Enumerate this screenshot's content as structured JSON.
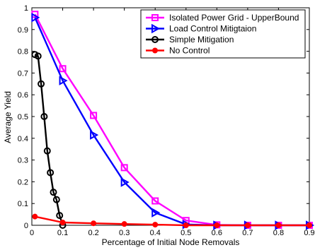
{
  "chart_data": {
    "type": "line",
    "xlabel": "Percentage of Initial Node Removals",
    "ylabel": "Average Yield",
    "xlim": [
      0,
      0.9
    ],
    "ylim": [
      0,
      1
    ],
    "x_ticks": [
      "0",
      "0.1",
      "0.2",
      "0.3",
      "0.4",
      "0.5",
      "0.6",
      "0.7",
      "0.8",
      "0.9"
    ],
    "y_ticks": [
      "0",
      "0.1",
      "0.2",
      "0.3",
      "0.4",
      "0.5",
      "0.6",
      "0.7",
      "0.8",
      "0.9",
      "1"
    ],
    "grid": false,
    "legend_position": "top-right",
    "series": [
      {
        "name": "Isolated Power Grid - UpperBound",
        "color": "#ff00ff",
        "marker": "square",
        "x": [
          0.01,
          0.1,
          0.2,
          0.3,
          0.4,
          0.5,
          0.6,
          0.7,
          0.8,
          0.9
        ],
        "y": [
          0.97,
          0.72,
          0.505,
          0.265,
          0.112,
          0.022,
          0.002,
          0.0,
          0.0,
          0.0
        ]
      },
      {
        "name": "Load Control Mitigtaion",
        "color": "#0000ff",
        "marker": "triangle-right",
        "x": [
          0.01,
          0.1,
          0.2,
          0.3,
          0.4,
          0.5,
          0.6,
          0.7,
          0.8,
          0.9
        ],
        "y": [
          0.955,
          0.665,
          0.415,
          0.198,
          0.058,
          0.004,
          0.0,
          0.0,
          0.0,
          0.0
        ]
      },
      {
        "name": "Simple Mitigation",
        "color": "#000000",
        "marker": "circle",
        "x": [
          0.01,
          0.02,
          0.03,
          0.04,
          0.05,
          0.06,
          0.07,
          0.08,
          0.09,
          0.1
        ],
        "y": [
          0.785,
          0.778,
          0.65,
          0.5,
          0.342,
          0.242,
          0.152,
          0.118,
          0.045,
          0.0
        ]
      },
      {
        "name": "No Control",
        "color": "#ff0000",
        "marker": "dot",
        "x": [
          0.01,
          0.1,
          0.2,
          0.3,
          0.4,
          0.5,
          0.6,
          0.7,
          0.8,
          0.9
        ],
        "y": [
          0.04,
          0.013,
          0.009,
          0.006,
          0.003,
          0.0,
          0.0,
          0.0,
          0.0,
          0.0
        ]
      }
    ]
  }
}
